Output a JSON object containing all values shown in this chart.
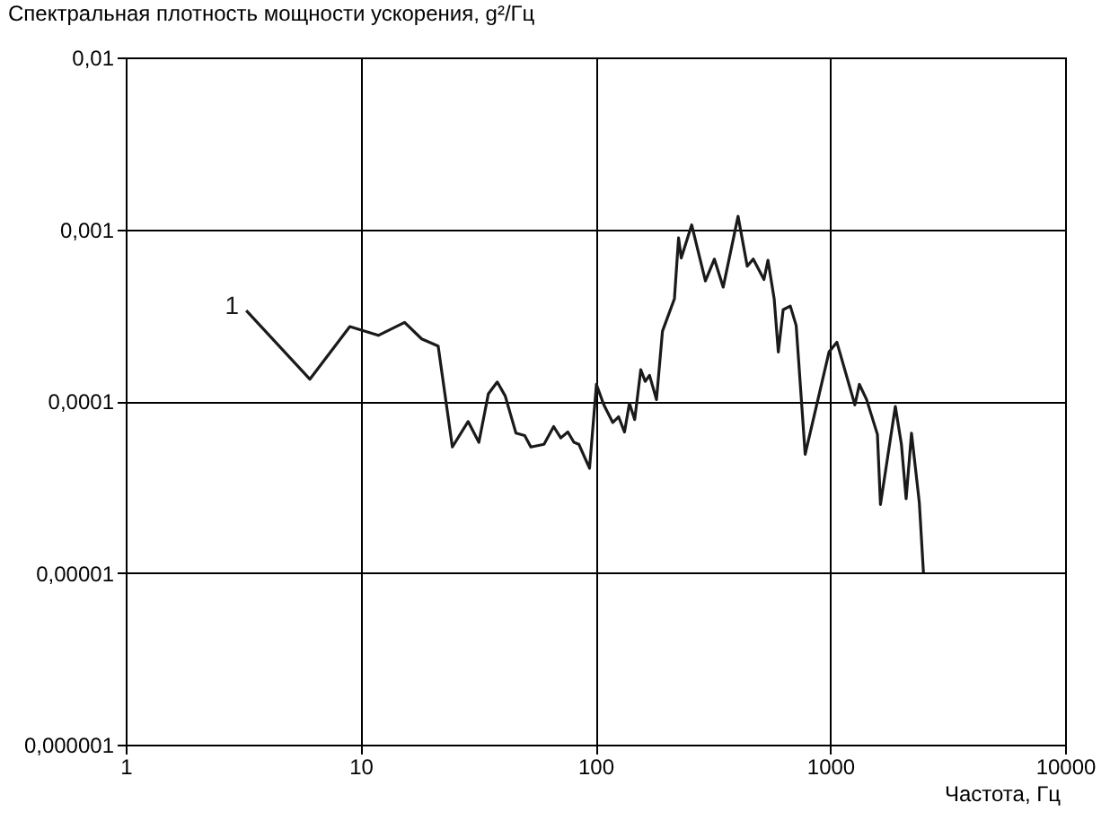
{
  "chart_data": {
    "type": "line",
    "xlabel": "Частота, Гц",
    "ylabel": "Спектральная плотность мощности ускорения, g²/Гц",
    "x": [
      3.26,
      6.08,
      9.0,
      11.9,
      15.4,
      18.2,
      21.4,
      24.6,
      28.7,
      31.9,
      35,
      38.2,
      41.3,
      45.9,
      50,
      53.1,
      60.4,
      66.4,
      71.2,
      76.3,
      81,
      85,
      94.4,
      101,
      108.6,
      118.6,
      125.5,
      133,
      139.6,
      147,
      156,
      163,
      170,
      182,
      193,
      217,
      226,
      232,
      257,
      294,
      321,
      350,
      405,
      443,
      470,
      522,
      543,
      577,
      601,
      630,
      676,
      716,
      782,
      988,
      1067,
      1273,
      1331,
      1428,
      1588,
      1636,
      1893,
      2009,
      2104,
      2218,
      2395,
      2494
    ],
    "series": [
      {
        "name": "1",
        "color": "#1a1a1a",
        "values": [
          0.000336,
          0.000134,
          0.000271,
          0.000241,
          0.000287,
          0.00023,
          0.000209,
          5.4e-05,
          7.6e-05,
          5.75e-05,
          0.00011,
          0.000129,
          0.000107,
          6.5e-05,
          6.3e-05,
          5.4e-05,
          5.6e-05,
          7.1e-05,
          6.1e-05,
          6.6e-05,
          5.75e-05,
          5.6e-05,
          4.06e-05,
          0.000125,
          9.5e-05,
          7.5e-05,
          8.1e-05,
          6.6e-05,
          9.7e-05,
          7.8e-05,
          0.000152,
          0.00013,
          0.000141,
          0.000102,
          0.000255,
          0.000394,
          0.00089,
          0.00068,
          0.00106,
          0.0005,
          0.00067,
          0.00046,
          0.00119,
          0.00061,
          0.00067,
          0.00051,
          0.00066,
          0.000394,
          0.000193,
          0.00034,
          0.000357,
          0.000275,
          4.9e-05,
          0.000193,
          0.00022,
          9.5e-05,
          0.000125,
          0.000102,
          6.4e-05,
          2.5e-05,
          9.3e-05,
          5.6e-05,
          2.7e-05,
          6.5e-05,
          2.56e-05,
          1e-05
        ]
      }
    ],
    "xlim": [
      1,
      10000
    ],
    "ylim": [
      1e-06,
      0.01
    ],
    "xticks": [
      1,
      10,
      100,
      1000,
      10000
    ],
    "yticks": [
      {
        "value": 1e-06,
        "label": "0,000001"
      },
      {
        "value": 1e-05,
        "label": "0,00001"
      },
      {
        "value": 0.0001,
        "label": "0,0001"
      },
      {
        "value": 0.001,
        "label": "0,001"
      },
      {
        "value": 0.01,
        "label": "0,01"
      }
    ],
    "grid": true,
    "log": "xy"
  }
}
